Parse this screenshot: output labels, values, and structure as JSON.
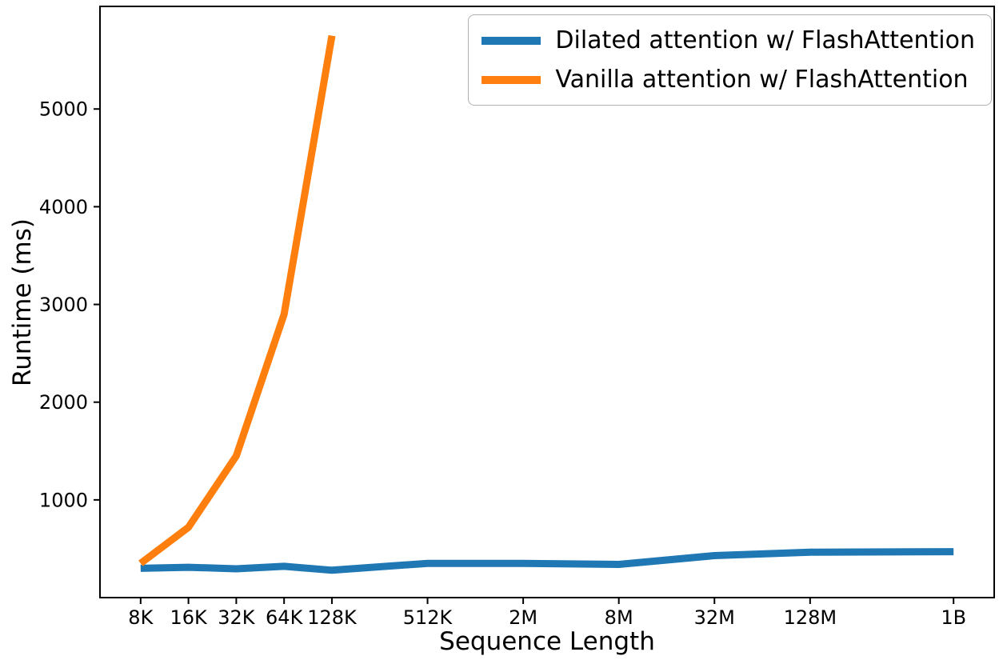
{
  "figure": {
    "background": "#ffffff"
  },
  "chart_data": {
    "type": "line",
    "title": "",
    "xlabel": "Sequence Length",
    "ylabel": "Runtime (ms)",
    "x_scale": "log2",
    "categories": [
      "8K",
      "16K",
      "32K",
      "64K",
      "128K",
      "512K",
      "2M",
      "8M",
      "32M",
      "128M",
      "1B"
    ],
    "x_log2": [
      13,
      14,
      15,
      16,
      17,
      19,
      21,
      23,
      25,
      27,
      30
    ],
    "series": [
      {
        "name": "Dilated attention w/ FlashAttention",
        "color": "#1f77b4",
        "values": [
          300,
          310,
          295,
          320,
          280,
          350,
          350,
          340,
          430,
          465,
          470
        ]
      },
      {
        "name": "Vanilla attention w/ FlashAttention",
        "color": "#ff7f0e",
        "values": [
          350,
          720,
          1450,
          2900,
          5750,
          null,
          null,
          null,
          null,
          null,
          null
        ]
      }
    ],
    "yticks": [
      1000,
      2000,
      3000,
      4000,
      5000
    ],
    "ylim": [
      0,
      6050
    ],
    "xlim_log2": [
      12.15,
      30.85
    ],
    "grid": false,
    "legend_position": "upper right",
    "line_width": 9,
    "axis_color": "#000000",
    "tick_font_size": 24,
    "tick_length": 8
  }
}
